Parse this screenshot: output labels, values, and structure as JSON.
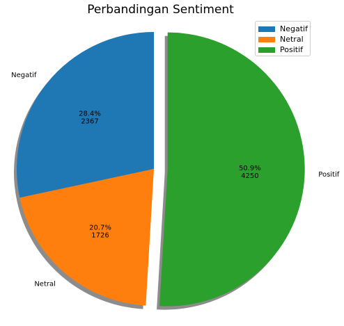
{
  "chart_data": {
    "type": "pie",
    "title": "Perbandingan Sentiment",
    "slices": [
      {
        "label": "Negatif",
        "value": 2367,
        "percent": "28.4%",
        "color": "#1f77b4",
        "exploded": false
      },
      {
        "label": "Netral",
        "value": 1726,
        "percent": "20.7%",
        "color": "#ff7f0e",
        "exploded": false
      },
      {
        "label": "Positif",
        "value": 4250,
        "percent": "50.9%",
        "color": "#2ca02c",
        "exploded": true
      }
    ],
    "shadow": true,
    "legend_position": "top-right"
  },
  "legend": {
    "items": [
      {
        "label": "Negatif",
        "color": "#1f77b4"
      },
      {
        "label": "Netral",
        "color": "#ff7f0e"
      },
      {
        "label": "Positif",
        "color": "#2ca02c"
      }
    ]
  }
}
